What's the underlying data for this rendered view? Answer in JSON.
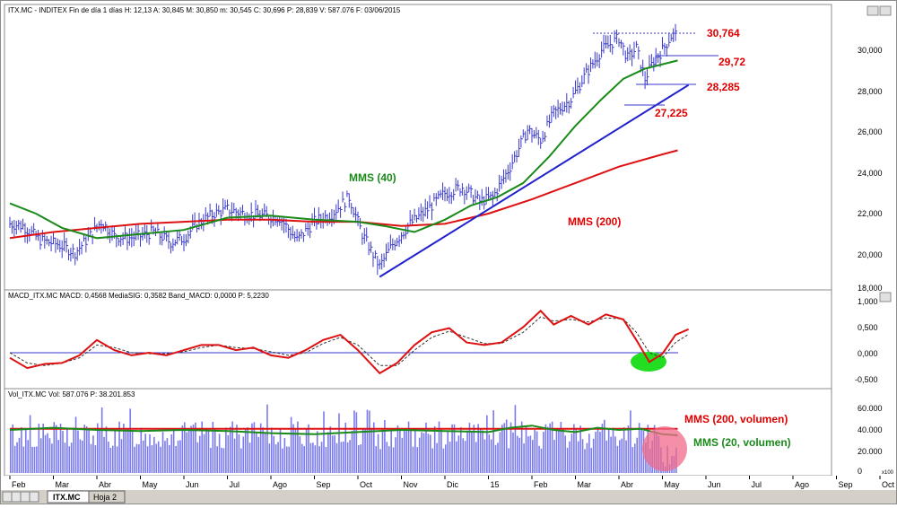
{
  "colors": {
    "price_bars": "#3a3acc",
    "mms40": "#1a8a1a",
    "mms200": "#dd1111",
    "trendline": "#2222cc",
    "macd": "#dd1111",
    "signal": "#333333",
    "volume_bars": "#7a7aee",
    "annotation_red": "#e00000",
    "annotation_green": "#1a8a1a",
    "highlight_green": "#22dd22",
    "highlight_pink": "#f06a8a"
  },
  "price_panel": {
    "header": "ITX.MC - INDITEX  Fin de día 1 días  H: 12,13  A: 30,845  M: 30,850  m: 30,545  C: 30,696  P: 28,839  V: 587.076  F: 03/06/2015",
    "y_ticks": [
      "30,000",
      "28,000",
      "26,000",
      "24,000",
      "22,000",
      "20,000",
      "18,000"
    ],
    "labels": {
      "mms40": "MMS (40)",
      "mms200": "MMS (200)",
      "level1": "30,764",
      "level2": "29,72",
      "level3": "28,285",
      "level4": "27,225"
    }
  },
  "macd_panel": {
    "header": "MACD_ITX.MC  MACD: 0,4568  MediaSIG: 0,3582  Band_MACD: 0,0000  P: 5,2230",
    "y_ticks": [
      "1,000",
      "0,500",
      "0,000",
      "-0,500"
    ]
  },
  "volume_panel": {
    "header": "Vol_ITX.MC  Vol: 587.076  P: 38.201.853",
    "y_ticks": [
      "60.000",
      "40.000",
      "20.000",
      "0"
    ],
    "scale_note": "x100",
    "labels": {
      "mms200_vol": "MMS (200, volumen)",
      "mms20_vol": "MMS (20, volumen)"
    }
  },
  "x_axis": {
    "months": [
      "Feb",
      "Mar",
      "Abr",
      "May",
      "Jun",
      "Jul",
      "Ago",
      "Sep",
      "Oct",
      "Nov",
      "Dic",
      "15",
      "Feb",
      "Mar",
      "Abr",
      "May",
      "Jun",
      "Jul",
      "Ago",
      "Sep",
      "Oct"
    ]
  },
  "tabs": [
    {
      "label": "ITX.MC",
      "active": true
    },
    {
      "label": "Hoja 2",
      "active": false
    }
  ],
  "chart_data": [
    {
      "type": "ohlc",
      "panel": "price",
      "x_label": "months",
      "y_range": [
        18,
        31.5
      ],
      "anchors_month_index_price": [
        [
          0,
          21.5
        ],
        [
          0.3,
          21.4
        ],
        [
          0.7,
          20.7
        ],
        [
          1.1,
          20.5
        ],
        [
          1.5,
          20.1
        ],
        [
          1.8,
          20.8
        ],
        [
          2.1,
          21.6
        ],
        [
          2.4,
          20.9
        ],
        [
          2.7,
          20.8
        ],
        [
          3.0,
          20.9
        ],
        [
          3.3,
          21.1
        ],
        [
          3.7,
          20.6
        ],
        [
          4.0,
          20.8
        ],
        [
          4.3,
          21.5
        ],
        [
          4.7,
          22.0
        ],
        [
          5.0,
          22.2
        ],
        [
          5.4,
          22.0
        ],
        [
          5.8,
          21.9
        ],
        [
          6.2,
          21.8
        ],
        [
          6.6,
          20.7
        ],
        [
          7.0,
          21.6
        ],
        [
          7.4,
          22.0
        ],
        [
          7.8,
          22.8
        ],
        [
          8.1,
          21.0
        ],
        [
          8.5,
          19.4
        ],
        [
          8.8,
          20.5
        ],
        [
          9.2,
          21.5
        ],
        [
          9.6,
          22.2
        ],
        [
          10.0,
          23.0
        ],
        [
          10.4,
          23.3
        ],
        [
          10.8,
          22.6
        ],
        [
          11.1,
          22.8
        ],
        [
          11.5,
          24.3
        ],
        [
          11.9,
          26.1
        ],
        [
          12.2,
          25.6
        ],
        [
          12.5,
          26.9
        ],
        [
          12.9,
          27.6
        ],
        [
          13.2,
          28.7
        ],
        [
          13.6,
          30.0
        ],
        [
          14.0,
          30.6
        ],
        [
          14.2,
          29.6
        ],
        [
          14.4,
          30.1
        ],
        [
          14.6,
          28.6
        ],
        [
          14.8,
          29.5
        ],
        [
          15.0,
          30.0
        ],
        [
          15.2,
          30.7
        ],
        [
          15.35,
          30.8
        ]
      ],
      "mms40_anchors": [
        [
          0,
          22.5
        ],
        [
          0.6,
          22.0
        ],
        [
          1.2,
          21.3
        ],
        [
          2.0,
          20.8
        ],
        [
          3.0,
          21.0
        ],
        [
          4.0,
          21.2
        ],
        [
          5.0,
          21.8
        ],
        [
          6.0,
          21.9
        ],
        [
          7.0,
          21.7
        ],
        [
          8.0,
          21.6
        ],
        [
          8.6,
          21.4
        ],
        [
          9.3,
          21.1
        ],
        [
          10.0,
          21.7
        ],
        [
          10.6,
          22.4
        ],
        [
          11.2,
          22.8
        ],
        [
          11.8,
          23.5
        ],
        [
          12.4,
          24.8
        ],
        [
          13.0,
          26.3
        ],
        [
          13.6,
          27.6
        ],
        [
          14.1,
          28.6
        ],
        [
          14.6,
          29.1
        ],
        [
          15.35,
          29.5
        ]
      ],
      "mms200_anchors": [
        [
          0,
          20.8
        ],
        [
          1.0,
          21.1
        ],
        [
          2.0,
          21.3
        ],
        [
          3.0,
          21.5
        ],
        [
          4.0,
          21.6
        ],
        [
          5.0,
          21.7
        ],
        [
          6.0,
          21.7
        ],
        [
          7.0,
          21.6
        ],
        [
          8.0,
          21.6
        ],
        [
          9.0,
          21.4
        ],
        [
          10.0,
          21.5
        ],
        [
          11.0,
          22.0
        ],
        [
          12.0,
          22.7
        ],
        [
          13.0,
          23.5
        ],
        [
          14.0,
          24.3
        ],
        [
          15.0,
          24.9
        ],
        [
          15.35,
          25.1
        ]
      ],
      "trendline": [
        [
          8.5,
          18.9
        ],
        [
          15.6,
          28.3
        ]
      ]
    },
    {
      "type": "line",
      "panel": "macd",
      "y_range": [
        -0.65,
        1.0
      ],
      "macd_anchors": [
        [
          0,
          -0.1
        ],
        [
          0.4,
          -0.3
        ],
        [
          0.8,
          -0.22
        ],
        [
          1.2,
          -0.2
        ],
        [
          1.6,
          -0.05
        ],
        [
          2.0,
          0.25
        ],
        [
          2.4,
          0.05
        ],
        [
          2.8,
          -0.05
        ],
        [
          3.2,
          0.0
        ],
        [
          3.6,
          -0.05
        ],
        [
          4.0,
          0.05
        ],
        [
          4.4,
          0.15
        ],
        [
          4.8,
          0.15
        ],
        [
          5.2,
          0.05
        ],
        [
          5.6,
          0.1
        ],
        [
          6.0,
          -0.05
        ],
        [
          6.4,
          -0.1
        ],
        [
          6.8,
          0.05
        ],
        [
          7.2,
          0.25
        ],
        [
          7.6,
          0.35
        ],
        [
          8.0,
          0.05
        ],
        [
          8.5,
          -0.4
        ],
        [
          8.9,
          -0.2
        ],
        [
          9.3,
          0.15
        ],
        [
          9.7,
          0.4
        ],
        [
          10.1,
          0.48
        ],
        [
          10.5,
          0.2
        ],
        [
          10.9,
          0.15
        ],
        [
          11.3,
          0.2
        ],
        [
          11.8,
          0.5
        ],
        [
          12.2,
          0.82
        ],
        [
          12.5,
          0.55
        ],
        [
          12.9,
          0.72
        ],
        [
          13.3,
          0.55
        ],
        [
          13.7,
          0.75
        ],
        [
          14.1,
          0.65
        ],
        [
          14.4,
          0.25
        ],
        [
          14.7,
          -0.18
        ],
        [
          15.0,
          -0.02
        ],
        [
          15.3,
          0.35
        ],
        [
          15.6,
          0.46
        ]
      ],
      "signal_anchors": [
        [
          0,
          0.0
        ],
        [
          0.4,
          -0.2
        ],
        [
          0.8,
          -0.25
        ],
        [
          1.2,
          -0.2
        ],
        [
          1.6,
          -0.1
        ],
        [
          2.0,
          0.15
        ],
        [
          2.4,
          0.1
        ],
        [
          2.8,
          0.0
        ],
        [
          3.2,
          -0.02
        ],
        [
          3.6,
          -0.02
        ],
        [
          4.0,
          0.02
        ],
        [
          4.4,
          0.1
        ],
        [
          4.8,
          0.15
        ],
        [
          5.2,
          0.1
        ],
        [
          5.6,
          0.08
        ],
        [
          6.0,
          0.02
        ],
        [
          6.4,
          -0.05
        ],
        [
          6.8,
          0.0
        ],
        [
          7.2,
          0.18
        ],
        [
          7.6,
          0.3
        ],
        [
          8.0,
          0.15
        ],
        [
          8.5,
          -0.25
        ],
        [
          8.9,
          -0.25
        ],
        [
          9.3,
          0.05
        ],
        [
          9.7,
          0.3
        ],
        [
          10.1,
          0.42
        ],
        [
          10.5,
          0.3
        ],
        [
          10.9,
          0.18
        ],
        [
          11.3,
          0.18
        ],
        [
          11.8,
          0.4
        ],
        [
          12.2,
          0.7
        ],
        [
          12.5,
          0.62
        ],
        [
          12.9,
          0.65
        ],
        [
          13.3,
          0.6
        ],
        [
          13.7,
          0.68
        ],
        [
          14.1,
          0.66
        ],
        [
          14.4,
          0.4
        ],
        [
          14.7,
          0.0
        ],
        [
          15.0,
          -0.1
        ],
        [
          15.3,
          0.2
        ],
        [
          15.6,
          0.36
        ]
      ]
    },
    {
      "type": "bar",
      "panel": "volume",
      "y_range": [
        0,
        66
      ],
      "unit_scale": "x100",
      "baseline_level": 35,
      "mms200_vol_level": 41,
      "mms20_vol_anchors": [
        [
          0,
          40
        ],
        [
          1.0,
          42
        ],
        [
          2.0,
          40
        ],
        [
          3.0,
          39
        ],
        [
          4.0,
          40
        ],
        [
          5.0,
          39
        ],
        [
          6.0,
          37
        ],
        [
          7.0,
          36
        ],
        [
          8.0,
          38
        ],
        [
          9.0,
          40
        ],
        [
          10.0,
          39
        ],
        [
          11.0,
          38
        ],
        [
          11.5,
          42
        ],
        [
          12.0,
          44
        ],
        [
          12.5,
          40
        ],
        [
          13.0,
          38
        ],
        [
          13.5,
          42
        ],
        [
          14.0,
          40
        ],
        [
          14.5,
          41
        ],
        [
          15.0,
          36
        ],
        [
          15.35,
          35
        ]
      ]
    }
  ]
}
